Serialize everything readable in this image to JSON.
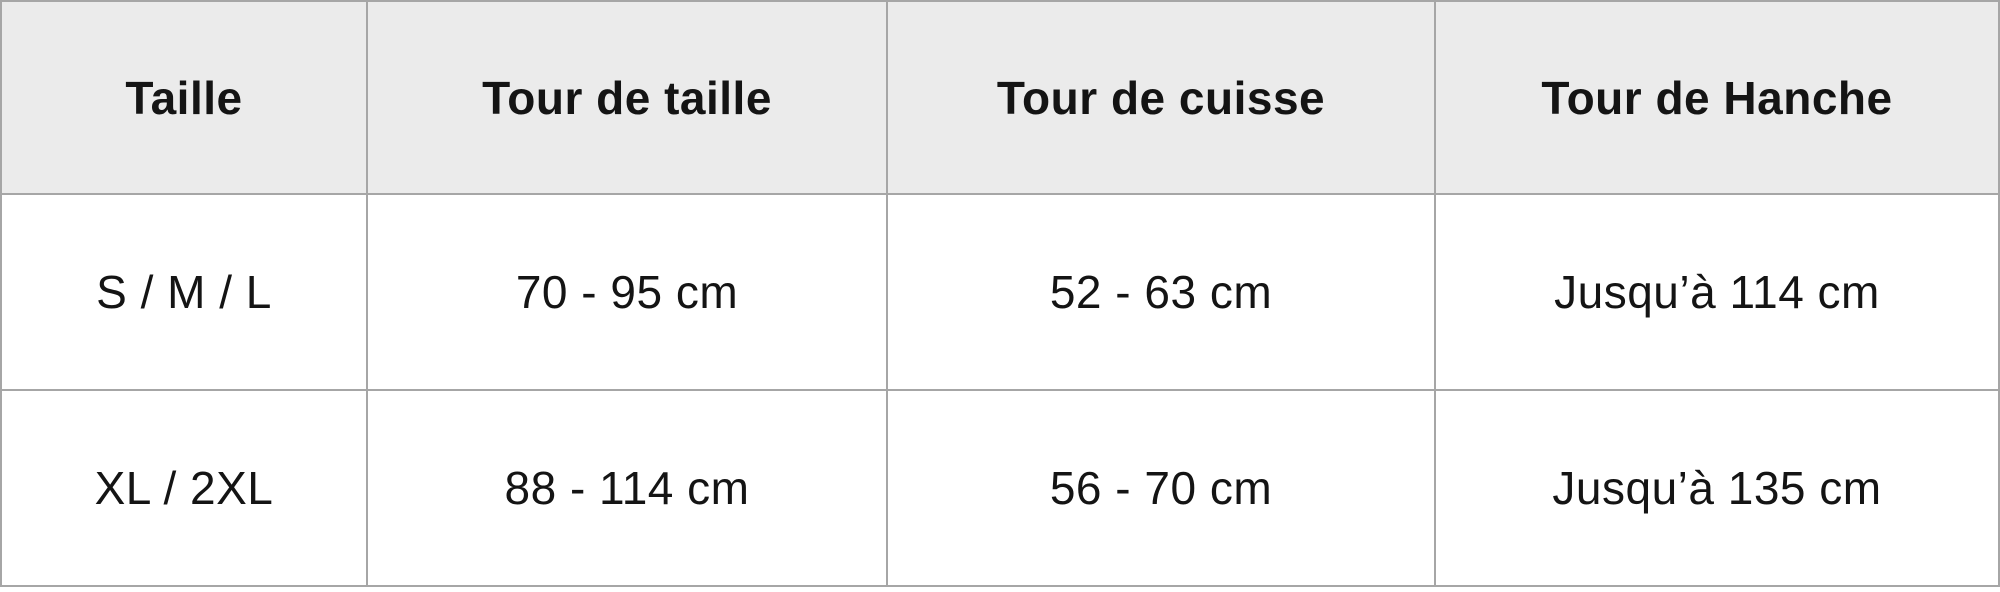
{
  "chart_data": {
    "type": "table",
    "columns": [
      "Taille",
      "Tour de taille",
      "Tour de cuisse",
      "Tour de Hanche"
    ],
    "rows": [
      [
        "S / M / L",
        "70 - 95 cm",
        "52 - 63 cm",
        "Jusqu’à 114 cm"
      ],
      [
        "XL / 2XL",
        "88 - 114 cm",
        "56 - 70 cm",
        "Jusqu’à 135 cm"
      ]
    ],
    "layout_hints": {
      "header_style": "bold on light gray",
      "grid": "full borders, collapsed"
    }
  },
  "colors": {
    "border_color": "#a6a6a6",
    "header_bg": "#ebebeb",
    "text_color": "#141414",
    "page_bg": "#ffffff"
  }
}
